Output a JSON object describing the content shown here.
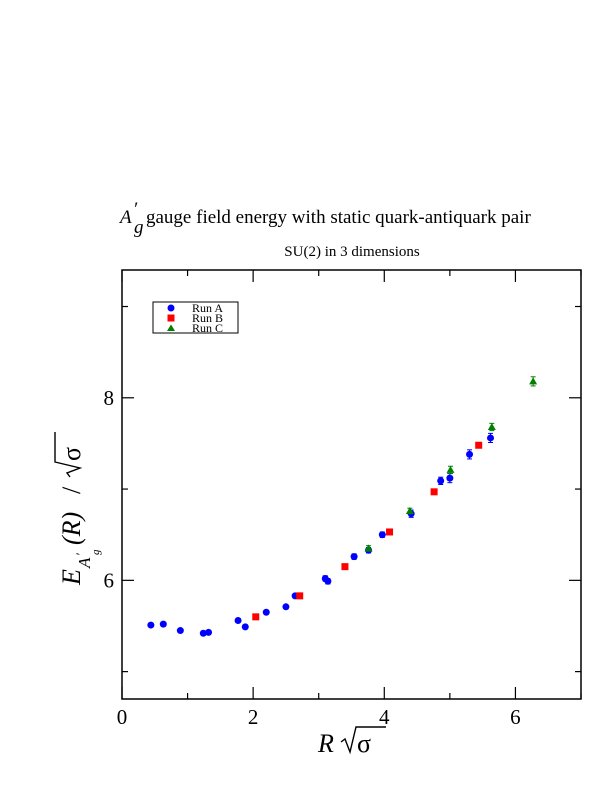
{
  "chart_data": {
    "type": "scatter",
    "title_main": "gauge field energy with static quark-antiquark pair",
    "title_symbol": "A",
    "title_symbol_sup": "′",
    "title_symbol_sub": "g",
    "subtitle": "SU(2) in 3 dimensions",
    "xlabel_var": "R",
    "xlabel_root": "σ",
    "ylabel_var": "E",
    "ylabel_sub": "A",
    "ylabel_subsub": "g",
    "ylabel_subsup": "′",
    "ylabel_arg": "(R)",
    "ylabel_div": "/",
    "ylabel_root": "σ",
    "xlim": [
      0,
      7
    ],
    "ylim": [
      4.7,
      9.4
    ],
    "x_ticks": [
      0,
      2,
      4,
      6
    ],
    "x_tick_labels": [
      "0",
      "2",
      "4",
      "6"
    ],
    "y_ticks": [
      6,
      8
    ],
    "y_tick_labels": [
      "6",
      "8"
    ],
    "legend_position": "top-left",
    "series": [
      {
        "name": "Run A",
        "color": "#0000ff",
        "marker": "circle",
        "points": [
          {
            "x": 0.44,
            "y": 5.51,
            "err": 0.02
          },
          {
            "x": 0.63,
            "y": 5.52,
            "err": 0.02
          },
          {
            "x": 0.89,
            "y": 5.45,
            "err": 0.02
          },
          {
            "x": 1.24,
            "y": 5.42,
            "err": 0.02
          },
          {
            "x": 1.32,
            "y": 5.43,
            "err": 0.02
          },
          {
            "x": 1.77,
            "y": 5.56,
            "err": 0.02
          },
          {
            "x": 1.88,
            "y": 5.49,
            "err": 0.02
          },
          {
            "x": 2.2,
            "y": 5.65,
            "err": 0.02
          },
          {
            "x": 2.5,
            "y": 5.71,
            "err": 0.02
          },
          {
            "x": 2.64,
            "y": 5.83,
            "err": 0.02
          },
          {
            "x": 3.1,
            "y": 6.02,
            "err": 0.03
          },
          {
            "x": 3.14,
            "y": 5.99,
            "err": 0.03
          },
          {
            "x": 3.54,
            "y": 6.26,
            "err": 0.03
          },
          {
            "x": 3.76,
            "y": 6.33,
            "err": 0.03
          },
          {
            "x": 3.97,
            "y": 6.5,
            "err": 0.03
          },
          {
            "x": 4.41,
            "y": 6.73,
            "err": 0.04
          },
          {
            "x": 4.86,
            "y": 7.09,
            "err": 0.04
          },
          {
            "x": 5.0,
            "y": 7.12,
            "err": 0.05
          },
          {
            "x": 5.3,
            "y": 7.38,
            "err": 0.05
          },
          {
            "x": 5.62,
            "y": 7.56,
            "err": 0.05
          }
        ]
      },
      {
        "name": "Run B",
        "color": "#ff0000",
        "marker": "square",
        "points": [
          {
            "x": 2.04,
            "y": 5.6,
            "err": 0.02
          },
          {
            "x": 2.71,
            "y": 5.83,
            "err": 0.02
          },
          {
            "x": 3.4,
            "y": 6.15,
            "err": 0.02
          },
          {
            "x": 4.08,
            "y": 6.53,
            "err": 0.03
          },
          {
            "x": 4.76,
            "y": 6.97,
            "err": 0.03
          },
          {
            "x": 5.44,
            "y": 7.48,
            "err": 0.03
          }
        ]
      },
      {
        "name": "Run C",
        "color": "#008000",
        "marker": "triangle",
        "points": [
          {
            "x": 3.76,
            "y": 6.35,
            "err": 0.03
          },
          {
            "x": 4.39,
            "y": 6.76,
            "err": 0.03
          },
          {
            "x": 5.01,
            "y": 7.21,
            "err": 0.04
          },
          {
            "x": 5.64,
            "y": 7.68,
            "err": 0.04
          },
          {
            "x": 6.27,
            "y": 8.18,
            "err": 0.05
          }
        ]
      }
    ]
  }
}
